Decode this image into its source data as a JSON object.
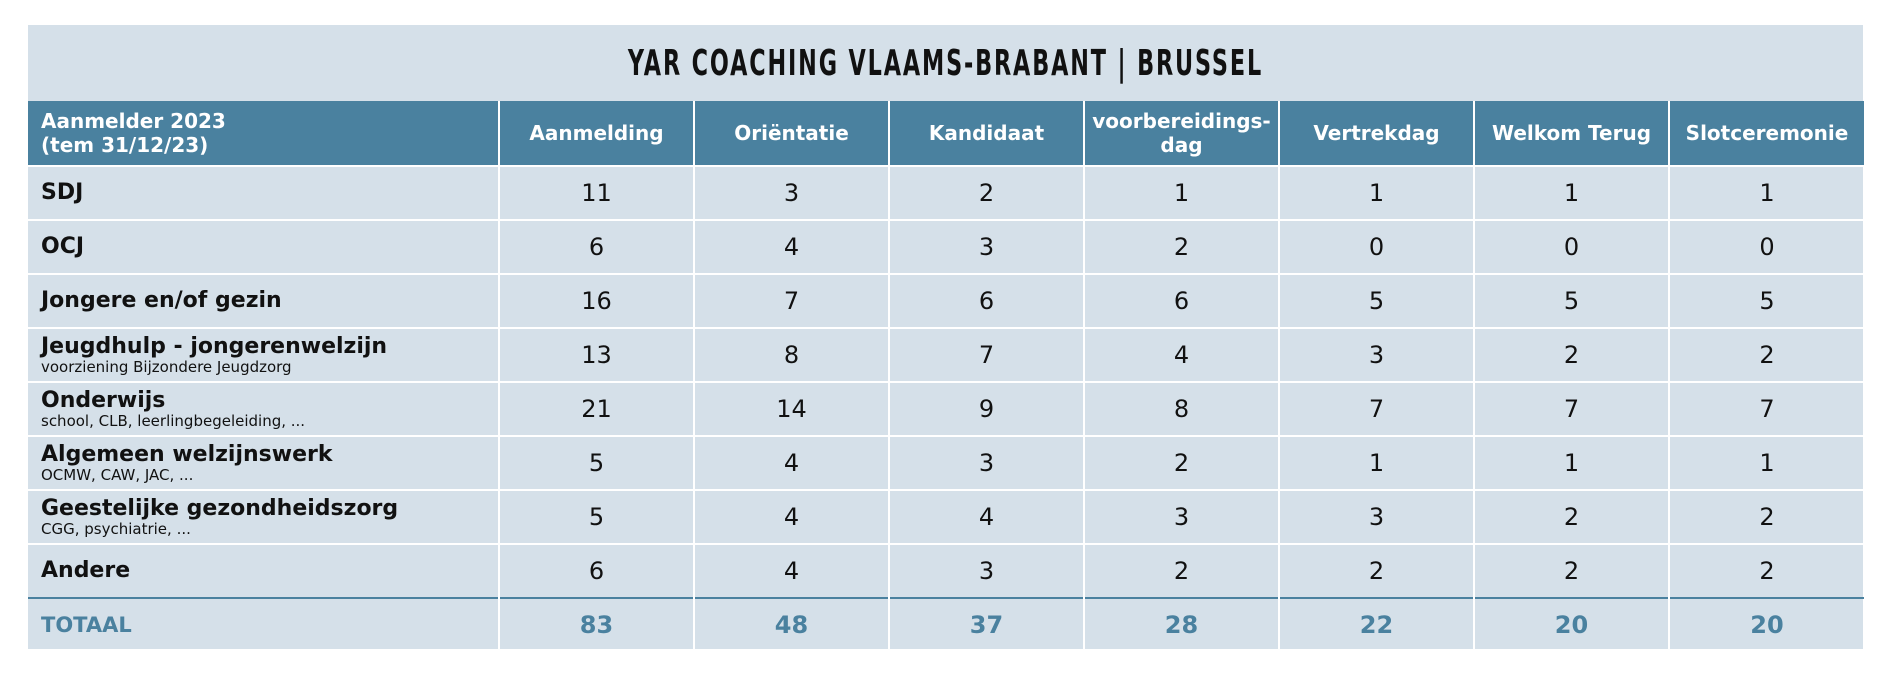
{
  "title": "YAR COACHING VLAAMS-BRABANT | BRUSSEL",
  "colors": {
    "header_bg": "#4a819f",
    "panel_bg": "#d5e0e9",
    "total_text": "#4a819f"
  },
  "chart_data": {
    "type": "table",
    "title": "YAR COACHING VLAAMS-BRABANT | BRUSSEL",
    "columns": [
      "Aanmelder 2023\n(tem 31/12/23)",
      "Aanmelding",
      "Oriëntatie",
      "Kandidaat",
      "voorbereidings-\ndag",
      "Vertrekdag",
      "Welkom Terug",
      "Slotceremonie"
    ],
    "rows": [
      {
        "label": "SDJ",
        "sublabel": "",
        "values": [
          11,
          3,
          2,
          1,
          1,
          1,
          1
        ]
      },
      {
        "label": "OCJ",
        "sublabel": "",
        "values": [
          6,
          4,
          3,
          2,
          0,
          0,
          0
        ]
      },
      {
        "label": "Jongere en/of gezin",
        "sublabel": "",
        "values": [
          16,
          7,
          6,
          6,
          5,
          5,
          5
        ]
      },
      {
        "label": "Jeugdhulp - jongerenwelzijn",
        "sublabel": "voorziening Bijzondere Jeugdzorg",
        "values": [
          13,
          8,
          7,
          4,
          3,
          2,
          2
        ]
      },
      {
        "label": "Onderwijs",
        "sublabel": "school, CLB, leerlingbegeleiding, ...",
        "values": [
          21,
          14,
          9,
          8,
          7,
          7,
          7
        ]
      },
      {
        "label": "Algemeen welzijnswerk",
        "sublabel": "OCMW, CAW, JAC, ...",
        "values": [
          5,
          4,
          3,
          2,
          1,
          1,
          1
        ]
      },
      {
        "label": "Geestelijke gezondheidszorg",
        "sublabel": "CGG, psychiatrie, ...",
        "values": [
          5,
          4,
          4,
          3,
          3,
          2,
          2
        ]
      },
      {
        "label": "Andere",
        "sublabel": "",
        "values": [
          6,
          4,
          3,
          2,
          2,
          2,
          2
        ]
      }
    ],
    "total": {
      "label": "TOTAAL",
      "values": [
        83,
        48,
        37,
        28,
        22,
        20,
        20
      ]
    }
  }
}
